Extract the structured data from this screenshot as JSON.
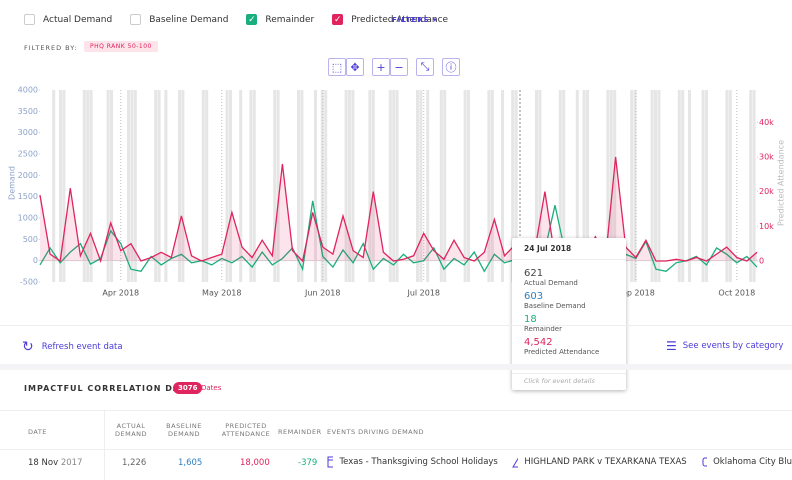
{
  "controls": {
    "legend": [
      {
        "label": "Actual Demand",
        "checked": false,
        "color": "#cccccc"
      },
      {
        "label": "Baseline Demand",
        "checked": false,
        "color": "#cccccc"
      },
      {
        "label": "Remainder",
        "checked": true,
        "color": "#1aae7e"
      },
      {
        "label": "Predicted Attendance",
        "checked": true,
        "color": "#e0245e"
      }
    ],
    "filters": "FILTERS",
    "filtered_by": "FILTERED BY:",
    "filter_tag": "PHQ RANK 50-100"
  },
  "chart_data": {
    "type": "line",
    "y_label": "Demand",
    "y2_label": "Predicted Attendance",
    "categories": [
      null,
      null,
      null,
      null,
      null,
      null,
      null,
      null,
      "Apr 2018",
      null,
      null,
      null,
      null,
      null,
      null,
      null,
      null,
      null,
      "May 2018",
      null,
      null,
      null,
      null,
      null,
      null,
      null,
      null,
      null,
      "Jun 2018",
      null,
      null,
      null,
      null,
      null,
      null,
      null,
      null,
      null,
      "Jul 2018",
      null,
      null,
      null,
      null,
      null,
      null,
      null,
      null,
      null,
      null,
      null,
      null,
      null,
      null,
      null,
      null,
      null,
      null,
      null,
      null,
      "Sep 2018",
      null,
      null,
      null,
      null,
      null,
      null,
      null,
      null,
      null,
      "Oct 2018",
      null,
      null
    ],
    "ylim": [
      -500,
      4000
    ],
    "yticks": [
      -500,
      0,
      500,
      1000,
      1500,
      2000,
      2500,
      3000,
      3500,
      4000
    ],
    "y2lim": [
      -6050,
      49300
    ],
    "y2ticks": [
      0,
      {
        "value": 10000,
        "label": "10k"
      },
      {
        "value": 20000,
        "label": "20k"
      },
      {
        "value": 30000,
        "label": "30k"
      },
      {
        "value": 40000,
        "label": "40k"
      }
    ],
    "series": [
      {
        "name": "Remainder",
        "color": "#1aae7e",
        "values": [
          -100,
          300,
          -50,
          200,
          400,
          -80,
          50,
          700,
          400,
          -200,
          -250,
          100,
          -100,
          50,
          150,
          -50,
          0,
          -100,
          50,
          -50,
          100,
          -150,
          200,
          -100,
          50,
          300,
          -200,
          1400,
          100,
          -150,
          250,
          -50,
          400,
          -200,
          50,
          -100,
          150,
          -50,
          0,
          300,
          -200,
          50,
          -100,
          200,
          -250,
          150,
          -50,
          18,
          100,
          -200,
          250,
          1300,
          200,
          -150,
          100,
          -50,
          300,
          -100,
          150,
          50,
          450,
          -200,
          -250,
          -50,
          0,
          100,
          -100,
          300,
          150,
          -50,
          100,
          -150
        ]
      },
      {
        "name": "Predicted Attendance",
        "color": "#e0245e",
        "axis": "y2",
        "values": [
          19000,
          2000,
          0,
          21000,
          1500,
          8000,
          0,
          11000,
          3000,
          5000,
          0,
          1000,
          2500,
          1000,
          13000,
          1500,
          0,
          1000,
          2000,
          14000,
          4000,
          1000,
          6000,
          1500,
          28000,
          3000,
          0,
          14000,
          4000,
          2000,
          13000,
          3000,
          1000,
          20000,
          2500,
          0,
          500,
          1500,
          8000,
          3000,
          500,
          6000,
          1000,
          0,
          2500,
          12000,
          1500,
          4542,
          0,
          3000,
          20000,
          1000,
          2000,
          0,
          1500,
          7000,
          500,
          30000,
          4000,
          1000,
          6000,
          0,
          0,
          500,
          0,
          1000,
          0,
          2000,
          4000,
          1000,
          0,
          2500
        ]
      }
    ]
  },
  "tooltip": {
    "date": "24 Jul 2018",
    "items": [
      {
        "value": "621",
        "label": "Actual Demand",
        "color": "#444444"
      },
      {
        "value": "603",
        "label": "Baseline Demand",
        "color": "#2f7fc1"
      },
      {
        "value": "18",
        "label": "Remainder",
        "color": "#1aae7e"
      },
      {
        "value": "4,542",
        "label": "Predicted Attendance",
        "color": "#e0245e"
      }
    ],
    "footer": "Click for event details"
  },
  "links": {
    "refresh": "Refresh event data",
    "categories": "See events by category"
  },
  "table": {
    "title": "IMPACTFUL CORRELATION DATES",
    "count": "3076",
    "count_label": "Dates",
    "headers": [
      "DATE",
      "ACTUAL DEMAND",
      "BASELINE DEMAND",
      "PREDICTED ATTENDANCE",
      "REMAINDER",
      "EVENTS DRIVING DEMAND"
    ],
    "rows": [
      {
        "date": "18 Nov",
        "year": "2017",
        "actual": "1,226",
        "baseline": "1,605",
        "predicted": "18,000",
        "remainder": "-379",
        "events": [
          "Texas - Thanksgiving School Holidays",
          "HIGHLAND PARK v TEXARKANA TEXAS",
          "Oklahoma City Blu"
        ]
      }
    ]
  }
}
